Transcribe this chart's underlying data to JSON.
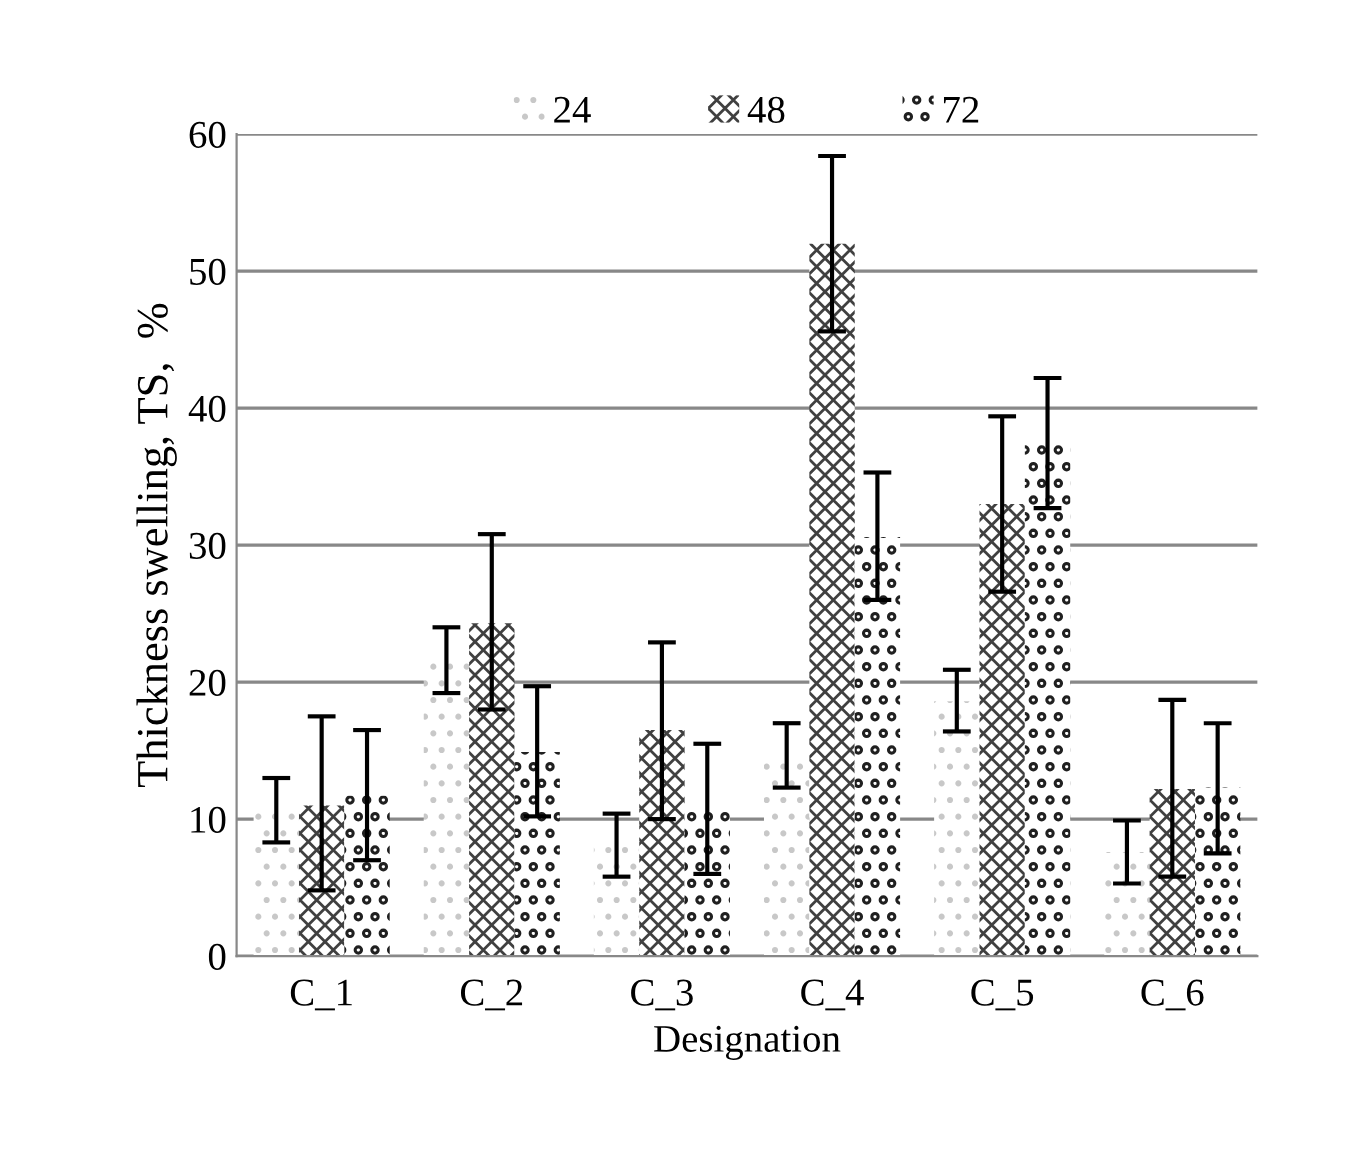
{
  "chart_data": {
    "type": "bar",
    "xlabel": "Designation",
    "ylabel": "Thickness swelling, TS,  %",
    "categories": [
      "C_1",
      "C_2",
      "C_3",
      "C_4",
      "C_5",
      "C_6"
    ],
    "series": [
      {
        "name": "24",
        "color": "#c8c8c8",
        "values": [
          10.6,
          21.6,
          8.1,
          14.6,
          18.6,
          7.6
        ],
        "errors": [
          [
            8.3,
            13
          ],
          [
            19.2,
            24
          ],
          [
            5.8,
            10.4
          ],
          [
            12.3,
            17
          ],
          [
            16.4,
            20.9
          ],
          [
            5.3,
            9.9
          ]
        ]
      },
      {
        "name": "48",
        "color": "#404040",
        "values": [
          11,
          24.3,
          16.5,
          52,
          33,
          12.2
        ],
        "errors": [
          [
            4.8,
            17.5
          ],
          [
            18,
            30.8
          ],
          [
            10,
            22.9
          ],
          [
            45.6,
            58.4
          ],
          [
            26.6,
            39.4
          ],
          [
            5.8,
            18.7
          ]
        ]
      },
      {
        "name": "72",
        "color": "#202020",
        "values": [
          11.7,
          14.9,
          10.7,
          30.6,
          37.4,
          12.3
        ],
        "errors": [
          [
            7,
            16.5
          ],
          [
            10.2,
            19.7
          ],
          [
            6,
            15.5
          ],
          [
            26,
            35.3
          ],
          [
            32.7,
            42.2
          ],
          [
            7.5,
            17
          ]
        ]
      }
    ],
    "ylim": [
      0,
      60
    ],
    "yticks": [
      0,
      10,
      20,
      30,
      40,
      50,
      60
    ],
    "grid": "y",
    "legend": "top"
  }
}
